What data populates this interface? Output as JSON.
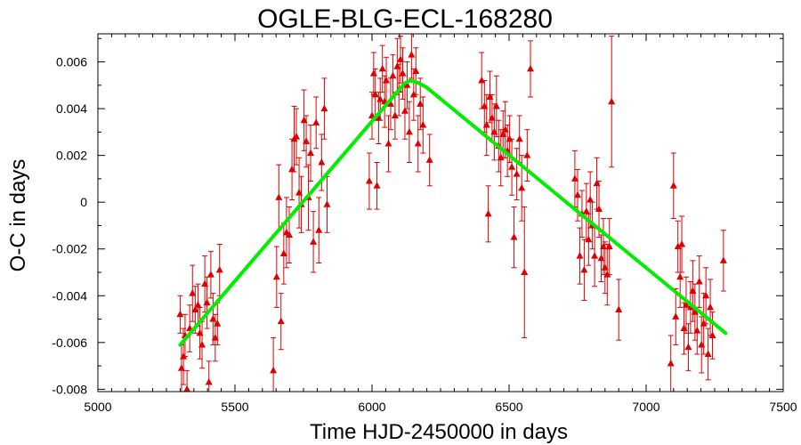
{
  "chart_data": {
    "type": "scatter",
    "title": "OGLE-BLG-ECL-168280",
    "xlabel": "Time HJD-2450000 in days",
    "ylabel": "O-C in days",
    "xlim": [
      5000,
      7500
    ],
    "ylim": [
      -0.0081,
      0.0072
    ],
    "x_ticks": [
      5000,
      5500,
      6000,
      6500,
      7000,
      7500
    ],
    "y_ticks": [
      -0.008,
      -0.006,
      -0.004,
      -0.002,
      0,
      0.002,
      0.004,
      0.006
    ],
    "x_tick_labels": [
      "5000",
      "5500",
      "6000",
      "6500",
      "7000",
      "7500"
    ],
    "y_tick_labels": [
      "-0.008",
      "-0.006",
      "-0.004",
      "-0.002",
      "0",
      "0.002",
      "0.004",
      "0.006"
    ],
    "grid": false,
    "series": [
      {
        "marker": "triangle",
        "color": "#dd0000",
        "points": [
          {
            "x": 5300,
            "y": -0.0048,
            "err": 0.0008
          },
          {
            "x": 5305,
            "y": -0.0071,
            "err": 0.001
          },
          {
            "x": 5312,
            "y": -0.0066,
            "err": 0.0012
          },
          {
            "x": 5318,
            "y": -0.0057,
            "err": 0.0009
          },
          {
            "x": 5325,
            "y": -0.008,
            "err": 0.0008
          },
          {
            "x": 5335,
            "y": -0.0054,
            "err": 0.001
          },
          {
            "x": 5345,
            "y": -0.0039,
            "err": 0.0012
          },
          {
            "x": 5355,
            "y": -0.0046,
            "err": 0.001
          },
          {
            "x": 5365,
            "y": -0.0044,
            "err": 0.0009
          },
          {
            "x": 5372,
            "y": -0.0056,
            "err": 0.0011
          },
          {
            "x": 5380,
            "y": -0.0061,
            "err": 0.001
          },
          {
            "x": 5390,
            "y": -0.0035,
            "err": 0.0012
          },
          {
            "x": 5398,
            "y": -0.0043,
            "err": 0.0011
          },
          {
            "x": 5405,
            "y": -0.0077,
            "err": 0.0009
          },
          {
            "x": 5412,
            "y": -0.0031,
            "err": 0.001
          },
          {
            "x": 5420,
            "y": -0.005,
            "err": 0.0011
          },
          {
            "x": 5428,
            "y": -0.0058,
            "err": 0.001
          },
          {
            "x": 5436,
            "y": -0.0052,
            "err": 0.0009
          },
          {
            "x": 5444,
            "y": -0.0029,
            "err": 0.0011
          },
          {
            "x": 5640,
            "y": -0.0072,
            "err": 0.0014
          },
          {
            "x": 5652,
            "y": -0.0032,
            "err": 0.0013
          },
          {
            "x": 5660,
            "y": 0.0002,
            "err": 0.0014
          },
          {
            "x": 5668,
            "y": -0.0051,
            "err": 0.0012
          },
          {
            "x": 5678,
            "y": -0.0022,
            "err": 0.0013
          },
          {
            "x": 5688,
            "y": -0.0013,
            "err": 0.0015
          },
          {
            "x": 5698,
            "y": -0.0014,
            "err": 0.0012
          },
          {
            "x": 5708,
            "y": 0.0014,
            "err": 0.0013
          },
          {
            "x": 5716,
            "y": 0.0027,
            "err": 0.0014
          },
          {
            "x": 5724,
            "y": 0.0028,
            "err": 0.0012
          },
          {
            "x": 5734,
            "y": 0.0004,
            "err": 0.0015
          },
          {
            "x": 5742,
            "y": -0.0001,
            "err": 0.0012
          },
          {
            "x": 5752,
            "y": 0.0035,
            "err": 0.0013
          },
          {
            "x": 5760,
            "y": 0.0026,
            "err": 0.0011
          },
          {
            "x": 5768,
            "y": 0.0002,
            "err": 0.0014
          },
          {
            "x": 5776,
            "y": 0.0021,
            "err": 0.0012
          },
          {
            "x": 5786,
            "y": -0.0017,
            "err": 0.0013
          },
          {
            "x": 5796,
            "y": 0.0034,
            "err": 0.0011
          },
          {
            "x": 5806,
            "y": -0.0012,
            "err": 0.0014
          },
          {
            "x": 5816,
            "y": 0.0017,
            "err": 0.0012
          },
          {
            "x": 5826,
            "y": 0.004,
            "err": 0.0013
          },
          {
            "x": 5836,
            "y": -0.0001,
            "err": 0.0012
          },
          {
            "x": 5990,
            "y": 0.0009,
            "err": 0.0012
          },
          {
            "x": 6000,
            "y": 0.0037,
            "err": 0.001
          },
          {
            "x": 6006,
            "y": 0.0055,
            "err": 0.0009
          },
          {
            "x": 6012,
            "y": 0.0046,
            "err": 0.0011
          },
          {
            "x": 6018,
            "y": 0.0007,
            "err": 0.001
          },
          {
            "x": 6024,
            "y": 0.0036,
            "err": 0.0011
          },
          {
            "x": 6030,
            "y": 0.0044,
            "err": 0.0009
          },
          {
            "x": 6038,
            "y": 0.0057,
            "err": 0.001
          },
          {
            "x": 6046,
            "y": 0.0043,
            "err": 0.0011
          },
          {
            "x": 6052,
            "y": 0.0052,
            "err": 0.001
          },
          {
            "x": 6060,
            "y": 0.0025,
            "err": 0.0012
          },
          {
            "x": 6068,
            "y": 0.0042,
            "err": 0.0011
          },
          {
            "x": 6076,
            "y": 0.0054,
            "err": 0.0009
          },
          {
            "x": 6084,
            "y": 0.0037,
            "err": 0.001
          },
          {
            "x": 6092,
            "y": 0.0058,
            "err": 0.0012
          },
          {
            "x": 6098,
            "y": 0.0048,
            "err": 0.0011
          },
          {
            "x": 6104,
            "y": 0.0061,
            "err": 0.001
          },
          {
            "x": 6112,
            "y": 0.0055,
            "err": 0.0011
          },
          {
            "x": 6120,
            "y": 0.0039,
            "err": 0.0012
          },
          {
            "x": 6128,
            "y": 0.005,
            "err": 0.001
          },
          {
            "x": 6136,
            "y": 0.003,
            "err": 0.0013
          },
          {
            "x": 6144,
            "y": 0.0063,
            "err": 0.001
          },
          {
            "x": 6152,
            "y": 0.0046,
            "err": 0.0011
          },
          {
            "x": 6160,
            "y": 0.0056,
            "err": 0.001
          },
          {
            "x": 6168,
            "y": 0.0025,
            "err": 0.0012
          },
          {
            "x": 6176,
            "y": 0.0042,
            "err": 0.0011
          },
          {
            "x": 6186,
            "y": 0.0033,
            "err": 0.0012
          },
          {
            "x": 6210,
            "y": 0.0018,
            "err": 0.0011
          },
          {
            "x": 6400,
            "y": 0.0052,
            "err": 0.0012
          },
          {
            "x": 6410,
            "y": 0.0041,
            "err": 0.0011
          },
          {
            "x": 6418,
            "y": 0.0033,
            "err": 0.0013
          },
          {
            "x": 6424,
            "y": -0.0005,
            "err": 0.0012
          },
          {
            "x": 6430,
            "y": 0.0045,
            "err": 0.0011
          },
          {
            "x": 6438,
            "y": 0.0036,
            "err": 0.001
          },
          {
            "x": 6446,
            "y": 0.003,
            "err": 0.0012
          },
          {
            "x": 6454,
            "y": 0.0041,
            "err": 0.0013
          },
          {
            "x": 6462,
            "y": 0.0024,
            "err": 0.0011
          },
          {
            "x": 6470,
            "y": 0.0019,
            "err": 0.0012
          },
          {
            "x": 6478,
            "y": 0.0029,
            "err": 0.001
          },
          {
            "x": 6486,
            "y": 0.0031,
            "err": 0.0012
          },
          {
            "x": 6494,
            "y": 0.0022,
            "err": 0.0011
          },
          {
            "x": 6502,
            "y": 0.0027,
            "err": 0.001
          },
          {
            "x": 6510,
            "y": 0.0015,
            "err": 0.0012
          },
          {
            "x": 6518,
            "y": -0.0015,
            "err": 0.0013
          },
          {
            "x": 6528,
            "y": 0.0012,
            "err": 0.0011
          },
          {
            "x": 6538,
            "y": 0.0027,
            "err": 0.001
          },
          {
            "x": 6546,
            "y": 0.0006,
            "err": 0.0014
          },
          {
            "x": 6556,
            "y": -0.003,
            "err": 0.0028
          },
          {
            "x": 6566,
            "y": 0.002,
            "err": 0.0011
          },
          {
            "x": 6578,
            "y": 0.0057,
            "err": 0.0012
          },
          {
            "x": 6740,
            "y": 0.001,
            "err": 0.0012
          },
          {
            "x": 6750,
            "y": 0.0003,
            "err": 0.0011
          },
          {
            "x": 6758,
            "y": -0.0023,
            "err": 0.0012
          },
          {
            "x": 6766,
            "y": -0.0005,
            "err": 0.001
          },
          {
            "x": 6774,
            "y": -0.0029,
            "err": 0.0013
          },
          {
            "x": 6782,
            "y": -0.0004,
            "err": 0.0012
          },
          {
            "x": 6790,
            "y": -0.0016,
            "err": 0.0011
          },
          {
            "x": 6796,
            "y": 0.0001,
            "err": 0.0012
          },
          {
            "x": 6804,
            "y": -0.001,
            "err": 0.001
          },
          {
            "x": 6812,
            "y": -0.0023,
            "err": 0.0013
          },
          {
            "x": 6820,
            "y": 0.0008,
            "err": 0.0011
          },
          {
            "x": 6828,
            "y": -0.0003,
            "err": 0.0012
          },
          {
            "x": 6836,
            "y": -0.0024,
            "err": 0.001
          },
          {
            "x": 6844,
            "y": -0.0019,
            "err": 0.0012
          },
          {
            "x": 6850,
            "y": -0.0028,
            "err": 0.0011
          },
          {
            "x": 6858,
            "y": -0.0031,
            "err": 0.0013
          },
          {
            "x": 6866,
            "y": -0.0019,
            "err": 0.0012
          },
          {
            "x": 6874,
            "y": 0.0043,
            "err": 0.0028
          },
          {
            "x": 6900,
            "y": -0.0046,
            "err": 0.0013
          },
          {
            "x": 7090,
            "y": -0.0069,
            "err": 0.0012
          },
          {
            "x": 7100,
            "y": 0.0007,
            "err": 0.0014
          },
          {
            "x": 7108,
            "y": -0.0049,
            "err": 0.0012
          },
          {
            "x": 7116,
            "y": -0.0019,
            "err": 0.0011
          },
          {
            "x": 7124,
            "y": -0.0032,
            "err": 0.0013
          },
          {
            "x": 7130,
            "y": -0.0018,
            "err": 0.0012
          },
          {
            "x": 7138,
            "y": -0.0054,
            "err": 0.0011
          },
          {
            "x": 7146,
            "y": -0.0044,
            "err": 0.0012
          },
          {
            "x": 7154,
            "y": -0.0062,
            "err": 0.001
          },
          {
            "x": 7162,
            "y": -0.0045,
            "err": 0.0011
          },
          {
            "x": 7170,
            "y": -0.0038,
            "err": 0.0013
          },
          {
            "x": 7178,
            "y": -0.0047,
            "err": 0.0012
          },
          {
            "x": 7186,
            "y": -0.0055,
            "err": 0.001
          },
          {
            "x": 7194,
            "y": -0.0034,
            "err": 0.0011
          },
          {
            "x": 7202,
            "y": -0.0061,
            "err": 0.0012
          },
          {
            "x": 7210,
            "y": -0.0052,
            "err": 0.0013
          },
          {
            "x": 7218,
            "y": -0.004,
            "err": 0.0012
          },
          {
            "x": 7226,
            "y": -0.0065,
            "err": 0.0011
          },
          {
            "x": 7234,
            "y": -0.0045,
            "err": 0.0012
          },
          {
            "x": 7242,
            "y": -0.0057,
            "err": 0.001
          },
          {
            "x": 7282,
            "y": -0.0025,
            "err": 0.0013
          }
        ]
      },
      {
        "line": true,
        "color": "#00ee00",
        "points": [
          {
            "x": 5300,
            "y": -0.0061
          },
          {
            "x": 6120,
            "y": 0.0051
          },
          {
            "x": 6140,
            "y": 0.0052
          },
          {
            "x": 6170,
            "y": 0.0051
          },
          {
            "x": 6200,
            "y": 0.0049
          },
          {
            "x": 7290,
            "y": -0.0056
          }
        ]
      }
    ]
  }
}
